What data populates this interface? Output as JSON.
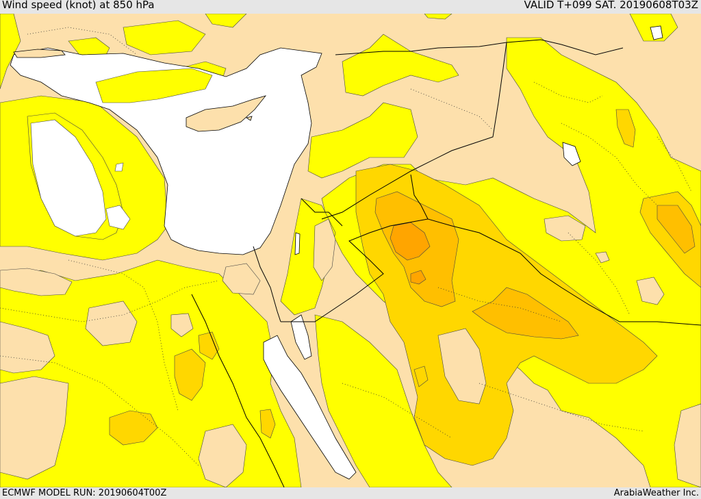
{
  "header": {
    "title": "Wind speed (knot) at 850 hPa",
    "valid": "VALID T+099 SAT. 20190608T03Z"
  },
  "footer": {
    "model_run": "ECMWF MODEL RUN: 20190604T00Z",
    "credit": "ArabiaWeather Inc."
  },
  "colors": {
    "sea": "#ffffff",
    "land_low": "#fde0ac",
    "wind_band_1": "#ffff00",
    "wind_band_2": "#ffd700",
    "wind_band_3": "#ffbf00",
    "wind_band_4": "#ffa500",
    "coast": "#000000",
    "background": "#e6e6e6"
  }
}
